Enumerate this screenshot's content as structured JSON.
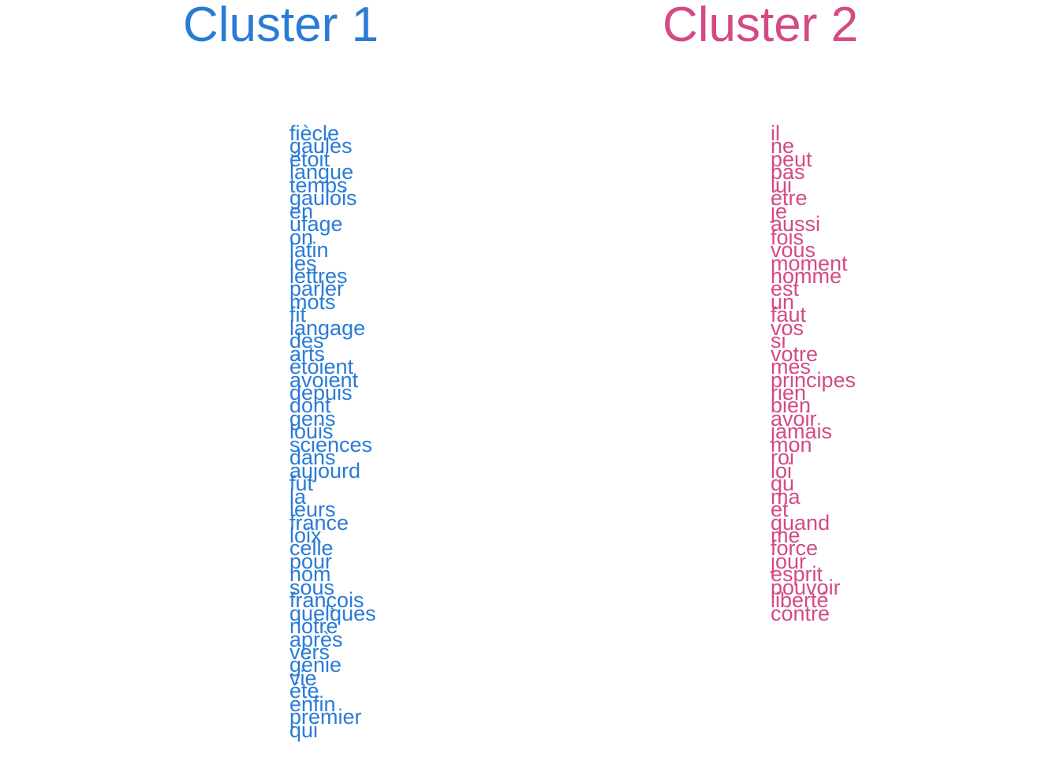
{
  "chart_data": {
    "type": "text-columns",
    "clusters": [
      {
        "title": "Cluster 1",
        "color": "#2a7bd6",
        "words": [
          "fiècle",
          "gaules",
          "étoit",
          "langue",
          "temps",
          "gaulois",
          "en",
          "ufage",
          "on",
          "latin",
          "les",
          "lettres",
          "parler",
          "mots",
          "fit",
          "langage",
          "des",
          "arts",
          "étoient",
          "avoient",
          "depuis",
          "dont",
          "gens",
          "louis",
          "sciences",
          "dans",
          "aujourd",
          "fut",
          "la",
          "leurs",
          "france",
          "loix",
          "celle",
          "pour",
          "nom",
          "sous",
          "françois",
          "quelques",
          "notre",
          "après",
          "vers",
          "génie",
          "vie",
          "été",
          "enfin",
          "premier",
          "qui"
        ]
      },
      {
        "title": "Cluster 2",
        "color": "#d44a85",
        "words": [
          "il",
          "ne",
          "peut",
          "pas",
          "lui",
          "être",
          "je",
          "aussi",
          "fois",
          "vous",
          "moment",
          "homme",
          "est",
          "un",
          "faut",
          "vos",
          "si",
          "votre",
          "mes",
          "principes",
          "rien",
          "bien",
          "avoir",
          "jamais",
          "mon",
          "roi",
          "loi",
          "qu",
          "ma",
          "et",
          "quand",
          "me",
          "force",
          "jour",
          "esprit",
          "pouvoir",
          "liberté",
          "contre"
        ]
      }
    ]
  }
}
